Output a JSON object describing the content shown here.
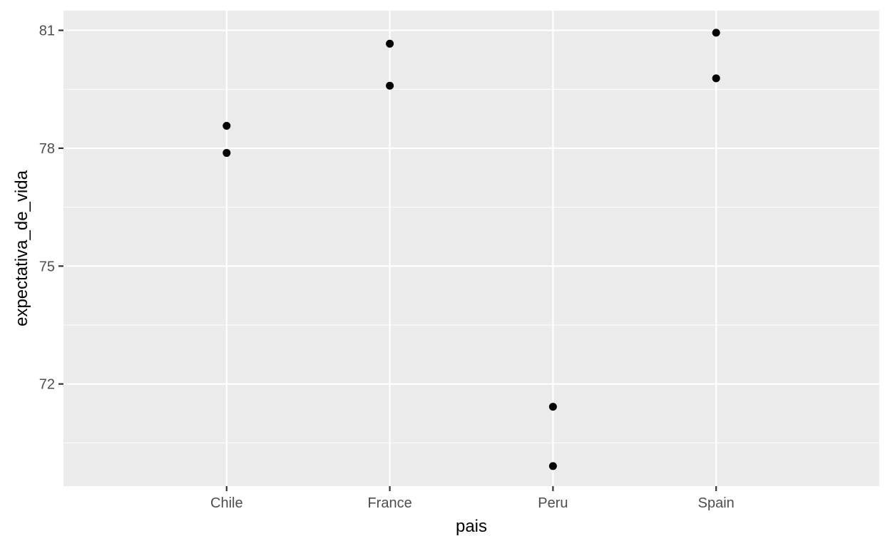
{
  "chart_data": {
    "type": "scatter",
    "title": "",
    "xlabel": "pais",
    "ylabel": "expectativa_de_vida",
    "categories": [
      "Chile",
      "France",
      "Peru",
      "Spain"
    ],
    "points": [
      {
        "x": "Chile",
        "y": 78.57
      },
      {
        "x": "Chile",
        "y": 77.88
      },
      {
        "x": "France",
        "y": 80.66
      },
      {
        "x": "France",
        "y": 79.59
      },
      {
        "x": "Peru",
        "y": 71.42
      },
      {
        "x": "Peru",
        "y": 69.91
      },
      {
        "x": "Spain",
        "y": 80.94
      },
      {
        "x": "Spain",
        "y": 79.78
      }
    ],
    "ylim": [
      69.4,
      81.5
    ],
    "yticks": [
      72,
      75,
      78,
      81
    ],
    "ytick_labels": [
      "72",
      "75",
      "78",
      "81"
    ],
    "grid": true,
    "legend": "none",
    "colors": {
      "panel": "#ebebeb",
      "grid": "#ffffff",
      "point": "#000000",
      "tick_text": "#4d4d4d",
      "tick_mark": "#333333"
    }
  }
}
